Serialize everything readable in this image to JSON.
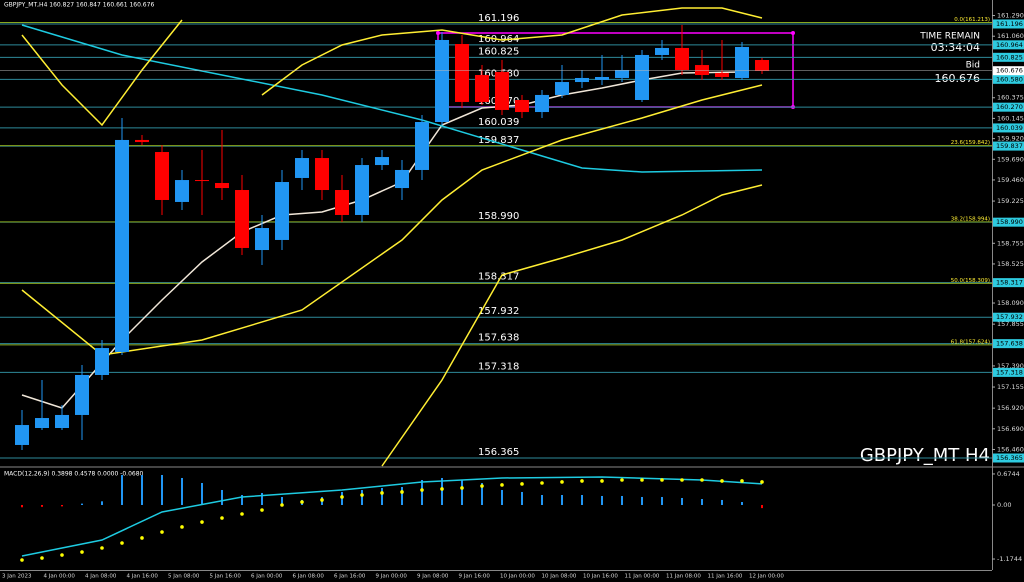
{
  "chart_data": [
    {
      "type": "candlestick",
      "title": "GBPJPY_MT,H4 160.827 160.847 160.661 160.676",
      "watermark": "GBPJPY_MT H4",
      "time_remain_label": "TIME REMAIN",
      "time_remain": "03:34:04",
      "bid_label": "Bid",
      "bid": 160.676,
      "up_color": "#2196f3",
      "down_color": "#ff0000",
      "open": [
        156.51,
        156.699,
        156.699,
        156.844,
        157.289,
        157.545,
        159.905,
        159.771,
        159.215,
        159.459,
        159.426,
        159.348,
        158.68,
        158.792,
        159.482,
        159.704,
        159.348,
        159.07,
        159.626,
        159.37,
        159.571,
        160.105,
        160.973,
        160.628,
        160.662,
        160.35,
        160.216,
        160.406,
        160.55,
        160.573,
        160.595,
        160.35,
        160.851,
        160.929,
        160.739,
        160.65,
        160.595,
        160.795
      ],
      "high": [
        156.899,
        157.233,
        156.955,
        157.4,
        157.678,
        160.15,
        159.96,
        159.849,
        159.571,
        159.793,
        160.016,
        159.515,
        159.07,
        159.571,
        159.793,
        159.793,
        159.515,
        159.704,
        159.793,
        159.682,
        160.183,
        161.107,
        161.073,
        160.739,
        160.795,
        160.406,
        160.461,
        160.739,
        160.684,
        160.851,
        160.851,
        160.906,
        161.018,
        161.185,
        160.906,
        161.018,
        160.995,
        160.817
      ],
      "low": [
        156.454,
        156.677,
        156.677,
        156.565,
        157.233,
        157.511,
        159.849,
        159.07,
        159.125,
        159.07,
        159.237,
        158.625,
        158.513,
        158.68,
        159.348,
        159.237,
        158.992,
        158.992,
        159.571,
        159.237,
        159.459,
        160.072,
        160.261,
        160.294,
        160.183,
        160.15,
        160.15,
        160.372,
        160.483,
        160.517,
        160.55,
        160.328,
        160.795,
        160.628,
        160.573,
        160.573,
        160.573,
        160.639
      ],
      "close": [
        156.732,
        156.81,
        156.844,
        157.289,
        157.589,
        159.905,
        159.882,
        159.237,
        159.459,
        159.448,
        159.37,
        158.703,
        158.925,
        159.437,
        159.704,
        159.348,
        159.07,
        159.626,
        159.715,
        159.571,
        160.105,
        161.018,
        160.328,
        160.328,
        160.239,
        160.216,
        160.406,
        160.55,
        160.595,
        160.606,
        160.684,
        160.851,
        160.929,
        160.684,
        160.628,
        160.606,
        160.94,
        160.676
      ],
      "series": [
        {
          "color": "#f0e6d8",
          "x": [
            0,
            2,
            5,
            7,
            9,
            11,
            13,
            15,
            17,
            19,
            21,
            23,
            25,
            27,
            29,
            31,
            33,
            36
          ],
          "values": [
            157.066,
            156.922,
            157.678,
            158.124,
            158.547,
            158.881,
            159.07,
            159.103,
            159.237,
            159.437,
            160.072,
            160.261,
            160.294,
            160.406,
            160.483,
            160.573,
            160.65,
            160.662
          ]
        },
        {
          "color": "#1ecbe1",
          "x": [
            0,
            5,
            10,
            15,
            20,
            25,
            28,
            31,
            37
          ],
          "values": [
            161.185,
            160.851,
            160.628,
            160.406,
            160.127,
            159.793,
            159.593,
            159.548,
            159.571
          ]
        },
        {
          "color": "#ffee33",
          "x": [
            0,
            2,
            4,
            6,
            8,
            10,
            12,
            14,
            16,
            18,
            21,
            24,
            27,
            30,
            33,
            35,
            37
          ],
          "values": [
            161.073,
            160.517,
            160.072,
            160.684,
            161.24,
            null,
            160.406,
            160.739,
            160.962,
            161.073,
            161.129,
            161.018,
            161.073,
            161.296,
            161.374,
            161.374,
            161.263
          ]
        },
        {
          "color": "#ffee33",
          "x": [
            0,
            4,
            9,
            14,
            19,
            21,
            23,
            27,
            31,
            34,
            37
          ],
          "values": [
            158.235,
            157.511,
            157.678,
            158.012,
            158.792,
            159.237,
            159.571,
            159.905,
            160.15,
            160.35,
            160.517
          ]
        },
        {
          "color": "#ffee33",
          "x": [
            18,
            21,
            24,
            27,
            30,
            33,
            35,
            37
          ],
          "values": [
            156.276,
            157.233,
            158.402,
            158.591,
            158.792,
            159.07,
            159.292,
            159.404
          ]
        }
      ],
      "levels": [
        161.196,
        160.964,
        160.825,
        {
          "value": 160.58,
          "label": "160.580"
        },
        {
          "value": 160.27,
          "label": "160.270"
        },
        160.039,
        159.837,
        {
          "value": 158.99,
          "label": "158.990"
        },
        158.317,
        157.932,
        157.638,
        157.318,
        156.365
      ],
      "level_color": "#2e8a9a",
      "fib": [
        {
          "value": 161.213,
          "label": "0.0(161.213)"
        },
        {
          "value": 159.842,
          "label": "23.6(159.842)"
        },
        {
          "value": 158.994,
          "label": "38.2(158.994)"
        },
        {
          "value": 158.309,
          "label": "50.0(158.309)"
        },
        {
          "value": 157.624,
          "label": "61.8(157.624)"
        }
      ],
      "fib_color": "#8aa81e",
      "ylim": [
        156.276,
        161.463
      ],
      "yticks": [
        {
          "value": 161.29,
          "label": "161.290"
        },
        {
          "value": 161.06,
          "label": "161.060"
        },
        {
          "value": 160.375,
          "label": "160.375"
        },
        160.145,
        {
          "value": 159.92,
          "label": "159.920"
        },
        {
          "value": 159.69,
          "label": "159.690"
        },
        {
          "value": 159.46,
          "label": "159.460"
        },
        159.225,
        158.755,
        158.525,
        {
          "value": 158.09,
          "label": "158.090"
        },
        157.855,
        {
          "value": 157.39,
          "label": "157.390"
        },
        157.155,
        {
          "value": 156.92,
          "label": "156.920"
        },
        {
          "value": 156.69,
          "label": "156.690"
        },
        {
          "value": 156.46,
          "label": "156.460"
        }
      ],
      "time_labels": [
        "3 Jan 2023",
        "4 Jan 00:00",
        "4 Jan 08:00",
        "4 Jan 16:00",
        "5 Jan 08:00",
        "5 Jan 16:00",
        "6 Jan 00:00",
        "6 Jan 08:00",
        "6 Jan 16:00",
        "9 Jan 00:00",
        "9 Jan 08:00",
        "9 Jan 16:00",
        "10 Jan 00:00",
        "10 Jan 08:00",
        "10 Jan 16:00",
        "11 Jan 00:00",
        "11 Jan 08:00",
        "11 Jan 16:00",
        "12 Jan 00:00"
      ]
    },
    {
      "type": "bar",
      "title": "MACD(12,26,9) 0.3898 0.4578 0.0000 -0.0680",
      "color": "#2196f3",
      "negative_color": "#ff0000",
      "values": [
        -0.05,
        -0.04,
        -0.03,
        0.03,
        0.08,
        0.652,
        0.652,
        0.652,
        0.587,
        0.478,
        0.326,
        0.217,
        0.261,
        0.174,
        0.109,
        0.174,
        0.283,
        0.326,
        0.37,
        0.391,
        0.543,
        0.587,
        0.543,
        0.478,
        0.326,
        0.283,
        0.217,
        0.217,
        0.217,
        0.196,
        0.196,
        0.174,
        0.174,
        0.152,
        0.13,
        0.109,
        0.065,
        -0.068
      ],
      "series": [
        {
          "color": "#1ecbe1",
          "x": [
            0,
            4,
            7,
            11,
            16,
            20,
            24,
            29,
            34,
            37
          ],
          "values": [
            -1.109,
            -0.761,
            -0.152,
            0.174,
            0.326,
            0.5,
            0.587,
            0.609,
            0.543,
            0.4578
          ]
        },
        {
          "color": "#ffff00",
          "marker": "dot",
          "values": [
            -1.196,
            -1.152,
            -1.087,
            -1.022,
            -0.935,
            -0.826,
            -0.717,
            -0.587,
            -0.478,
            -0.37,
            -0.283,
            -0.196,
            -0.109,
            0,
            0.065,
            0.109,
            0.174,
            0.217,
            0.261,
            0.283,
            0.326,
            0.348,
            0.37,
            0.413,
            0.435,
            0.457,
            0.478,
            0.5,
            0.522,
            0.522,
            0.543,
            0.543,
            0.543,
            0.543,
            0.543,
            0.522,
            0.522,
            0.5
          ]
        }
      ],
      "ylim": [
        -1.413,
        0.804
      ],
      "yticks": [
        0.6744,
        {
          "value": 0,
          "label": "0.00"
        },
        -1.1744
      ]
    }
  ]
}
